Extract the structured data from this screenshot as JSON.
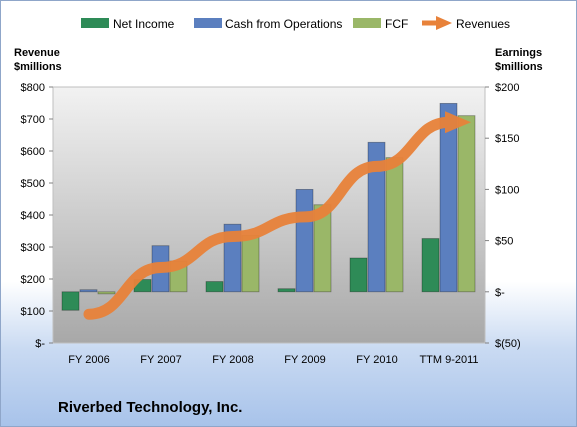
{
  "company": "Riverbed Technology, Inc.",
  "colors": {
    "net_income": "#2e8b57",
    "cash_from_operations": "#5b7fbf",
    "fcf": "#9ab768",
    "revenues": "#e8823a",
    "plot_top": "#f2f2f2",
    "plot_bottom": "#a8a8a8"
  },
  "chart_data": {
    "type": "bar",
    "title": "",
    "categories": [
      "FY 2006",
      "FY 2007",
      "FY 2008",
      "FY 2009",
      "FY 2010",
      "TTM 9-2011"
    ],
    "left_axis": {
      "label_line1": "Revenue",
      "label_line2": "$millions",
      "range": [
        0,
        800
      ],
      "ticks": [
        {
          "value": 0,
          "label": "$-"
        },
        {
          "value": 100,
          "label": "$100"
        },
        {
          "value": 200,
          "label": "$200"
        },
        {
          "value": 300,
          "label": "$300"
        },
        {
          "value": 400,
          "label": "$400"
        },
        {
          "value": 500,
          "label": "$500"
        },
        {
          "value": 600,
          "label": "$600"
        },
        {
          "value": 700,
          "label": "$700"
        },
        {
          "value": 800,
          "label": "$800"
        }
      ]
    },
    "right_axis": {
      "label_line1": "Earnings",
      "label_line2": "$millions",
      "range": [
        -50,
        200
      ],
      "ticks": [
        {
          "value": -50,
          "label": "$(50)"
        },
        {
          "value": 0,
          "label": "$-"
        },
        {
          "value": 50,
          "label": "$50"
        },
        {
          "value": 100,
          "label": "$100"
        },
        {
          "value": 150,
          "label": "$150"
        },
        {
          "value": 200,
          "label": "$200"
        }
      ]
    },
    "series": [
      {
        "name": "Net Income",
        "type": "bar",
        "axis": "right",
        "color_key": "net_income",
        "values": [
          -18,
          12,
          10,
          3,
          33,
          52
        ]
      },
      {
        "name": "Cash from Operations",
        "type": "bar",
        "axis": "right",
        "color_key": "cash_from_operations",
        "values": [
          2,
          45,
          66,
          100,
          146,
          184
        ]
      },
      {
        "name": "FCF",
        "type": "bar",
        "axis": "right",
        "color_key": "fcf",
        "values": [
          -2,
          30,
          55,
          85,
          131,
          172
        ]
      },
      {
        "name": "Revenues",
        "type": "line",
        "axis": "left",
        "color_key": "revenues",
        "values": [
          90,
          236,
          333,
          394,
          552,
          690
        ]
      }
    ],
    "legend_position": "top",
    "grid": false
  }
}
